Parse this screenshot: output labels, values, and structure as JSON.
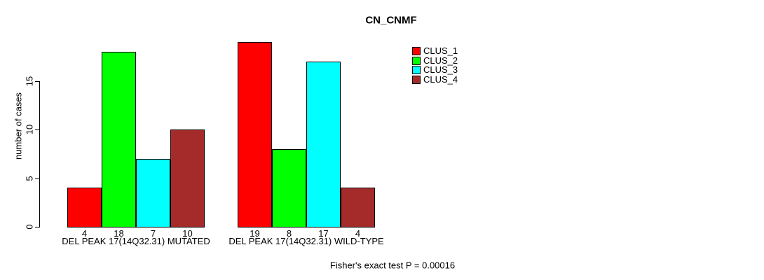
{
  "chart_data": {
    "type": "bar",
    "title": "CN_CNMF",
    "xlabel": "",
    "ylabel": "number of cases",
    "categories": [
      "DEL PEAK 17(14Q32.31) MUTATED",
      "DEL PEAK 17(14Q32.31) WILD-TYPE"
    ],
    "series": [
      {
        "name": "CLUS_1",
        "color": "#FF0000",
        "values": [
          4,
          19
        ]
      },
      {
        "name": "CLUS_2",
        "color": "#00FF00",
        "values": [
          18,
          8
        ]
      },
      {
        "name": "CLUS_3",
        "color": "#00FFFF",
        "values": [
          7,
          17
        ]
      },
      {
        "name": "CLUS_4",
        "color": "#A52A2A",
        "values": [
          10,
          4
        ]
      }
    ],
    "yticks": [
      0,
      5,
      10,
      15
    ],
    "ylim": [
      0,
      19.5
    ],
    "grid": false,
    "legend_position": "top-right",
    "bar_value_labels": true,
    "annotation": "Fisher's exact test P = 0.00016"
  }
}
